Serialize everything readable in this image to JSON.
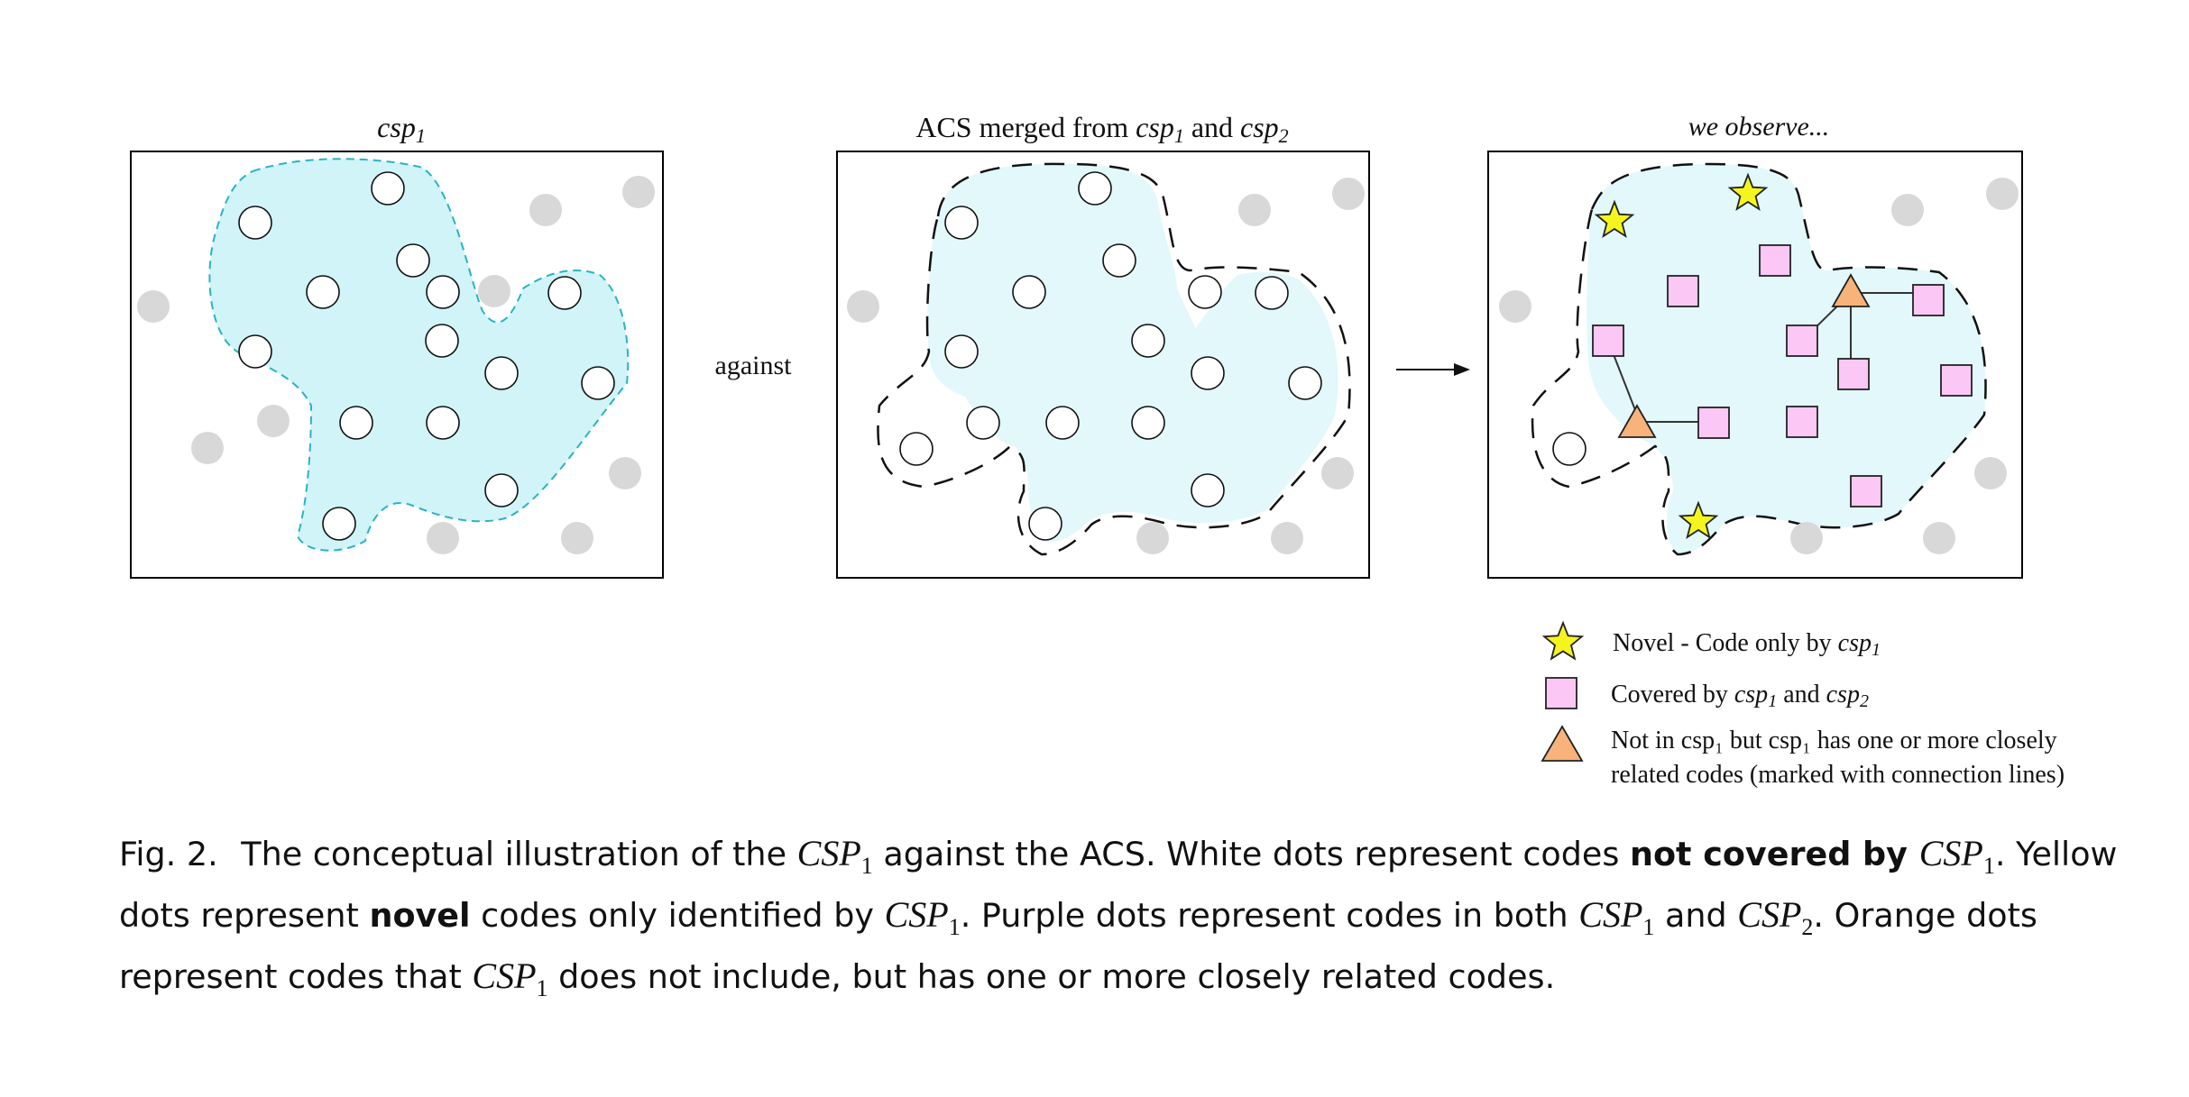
{
  "panels": [
    {
      "title_pre": "",
      "title_em1": "csp",
      "title_sub1": "1",
      "title_mid": "",
      "title_em2": "",
      "title_sub2": ""
    },
    {
      "title_pre": "ACS merged from ",
      "title_em1": "csp",
      "title_sub1": "1",
      "title_mid": " and ",
      "title_em2": "csp",
      "title_sub2": "2"
    },
    {
      "title_pre": "",
      "title_em1": "we observe...",
      "title_sub1": "",
      "title_mid": "",
      "title_em2": "",
      "title_sub2": ""
    }
  ],
  "connector_label": "against",
  "legend": {
    "novel": {
      "text": "Novel - Code only by ",
      "em": "csp",
      "sub": "1"
    },
    "covered": {
      "text": "Covered by ",
      "em1": "csp",
      "sub1": "1",
      "mid": " and ",
      "em2": "csp",
      "sub2": "2"
    },
    "related": {
      "line1": "Not in csp₁ but csp₁ has  one or more closely",
      "line2": "related codes (marked with connection lines)"
    }
  },
  "caption": {
    "label": "Fig. 2.",
    "s1": "The conceptual illustration of the ",
    "m1": "CSP",
    "m1s": "1",
    "s2": " against the ACS. White dots represent codes ",
    "b1": "not covered by ",
    "m2": "CSP",
    "m2s": "1",
    "s3": ". Yellow dots represent ",
    "b2": "novel",
    "s4": " codes only identified by ",
    "m3": "CSP",
    "m3s": "1",
    "s5": ". Purple dots represent codes in both ",
    "m4": "CSP",
    "m4s": "1",
    "s6": " and ",
    "m5": "CSP",
    "m5s": "2",
    "s7": ". Orange dots represent codes that ",
    "m6": "CSP",
    "m6s": "1",
    "s8": " does not include, but has one or more closely related codes."
  },
  "colors": {
    "region_csp1": "#d0f4f7",
    "region_csp1_stroke": "#2ab3c4",
    "region_acs": "#e2f8fb",
    "grey_dot": "#d8d8d8",
    "star": "#f5f51e",
    "square": "#fbc7f5",
    "triangle": "#f8b37a"
  }
}
